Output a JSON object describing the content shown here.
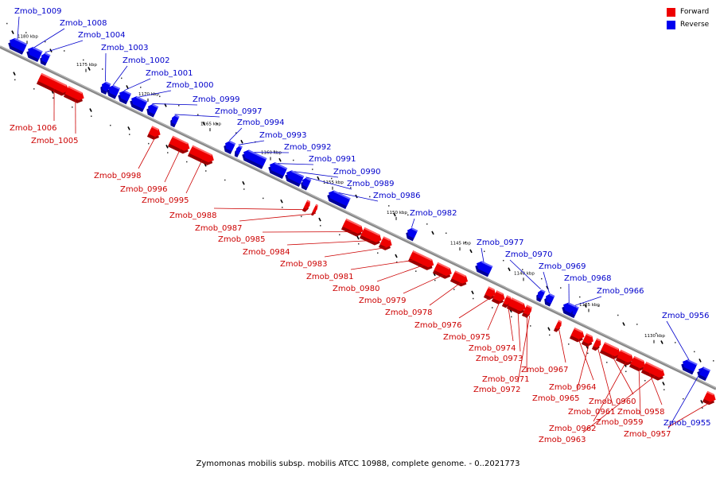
{
  "legend": {
    "forward_label": "Forward",
    "reverse_label": "Reverse",
    "forward_color": "#ee0000",
    "reverse_color": "#0000ee"
  },
  "colors": {
    "forward_label": "#cc0000",
    "reverse_label": "#0000cc",
    "backbone": "#888888"
  },
  "caption": "Zymomonas mobilis subsp. mobilis ATCC 10988, complete genome. - 0..2021773",
  "scale_ticks": [
    "1180 kbp",
    "1175 kbp",
    "1170 kbp",
    "1165 kbp",
    "1160 kbp",
    "1155 kbp",
    "1150 kbp",
    "1145 kbp",
    "1140 kbp",
    "1135 kbp",
    "1130 kbp"
  ],
  "genes": [
    {
      "id": "Zmob_1009",
      "strand": "reverse"
    },
    {
      "id": "Zmob_1008",
      "strand": "reverse"
    },
    {
      "id": "Zmob_1004",
      "strand": "reverse"
    },
    {
      "id": "Zmob_1003",
      "strand": "reverse"
    },
    {
      "id": "Zmob_1002",
      "strand": "reverse"
    },
    {
      "id": "Zmob_1001",
      "strand": "reverse"
    },
    {
      "id": "Zmob_1000",
      "strand": "reverse"
    },
    {
      "id": "Zmob_0999",
      "strand": "reverse"
    },
    {
      "id": "Zmob_0997",
      "strand": "reverse"
    },
    {
      "id": "Zmob_0994",
      "strand": "reverse"
    },
    {
      "id": "Zmob_0993",
      "strand": "reverse"
    },
    {
      "id": "Zmob_0992",
      "strand": "reverse"
    },
    {
      "id": "Zmob_0991",
      "strand": "reverse"
    },
    {
      "id": "Zmob_0990",
      "strand": "reverse"
    },
    {
      "id": "Zmob_0989",
      "strand": "reverse"
    },
    {
      "id": "Zmob_0986",
      "strand": "reverse"
    },
    {
      "id": "Zmob_0982",
      "strand": "reverse"
    },
    {
      "id": "Zmob_0977",
      "strand": "reverse"
    },
    {
      "id": "Zmob_0970",
      "strand": "reverse"
    },
    {
      "id": "Zmob_0969",
      "strand": "reverse"
    },
    {
      "id": "Zmob_0968",
      "strand": "reverse"
    },
    {
      "id": "Zmob_0966",
      "strand": "reverse"
    },
    {
      "id": "Zmob_0956",
      "strand": "reverse"
    },
    {
      "id": "Zmob_0955",
      "strand": "reverse"
    },
    {
      "id": "Zmob_1006",
      "strand": "forward"
    },
    {
      "id": "Zmob_1005",
      "strand": "forward"
    },
    {
      "id": "Zmob_0998",
      "strand": "forward"
    },
    {
      "id": "Zmob_0996",
      "strand": "forward"
    },
    {
      "id": "Zmob_0995",
      "strand": "forward"
    },
    {
      "id": "Zmob_0988",
      "strand": "forward"
    },
    {
      "id": "Zmob_0987",
      "strand": "forward"
    },
    {
      "id": "Zmob_0985",
      "strand": "forward"
    },
    {
      "id": "Zmob_0984",
      "strand": "forward"
    },
    {
      "id": "Zmob_0983",
      "strand": "forward"
    },
    {
      "id": "Zmob_0981",
      "strand": "forward"
    },
    {
      "id": "Zmob_0980",
      "strand": "forward"
    },
    {
      "id": "Zmob_0979",
      "strand": "forward"
    },
    {
      "id": "Zmob_0978",
      "strand": "forward"
    },
    {
      "id": "Zmob_0976",
      "strand": "forward"
    },
    {
      "id": "Zmob_0975",
      "strand": "forward"
    },
    {
      "id": "Zmob_0974",
      "strand": "forward"
    },
    {
      "id": "Zmob_0973",
      "strand": "forward"
    },
    {
      "id": "Zmob_0971",
      "strand": "forward"
    },
    {
      "id": "Zmob_0972",
      "strand": "forward"
    },
    {
      "id": "Zmob_0967",
      "strand": "forward"
    },
    {
      "id": "Zmob_0964",
      "strand": "forward"
    },
    {
      "id": "Zmob_0965",
      "strand": "forward"
    },
    {
      "id": "Zmob_0961",
      "strand": "forward"
    },
    {
      "id": "Zmob_0960",
      "strand": "forward"
    },
    {
      "id": "Zmob_0962",
      "strand": "forward"
    },
    {
      "id": "Zmob_0959",
      "strand": "forward"
    },
    {
      "id": "Zmob_0958",
      "strand": "forward"
    },
    {
      "id": "Zmob_0963",
      "strand": "forward"
    },
    {
      "id": "Zmob_0957",
      "strand": "forward"
    }
  ]
}
